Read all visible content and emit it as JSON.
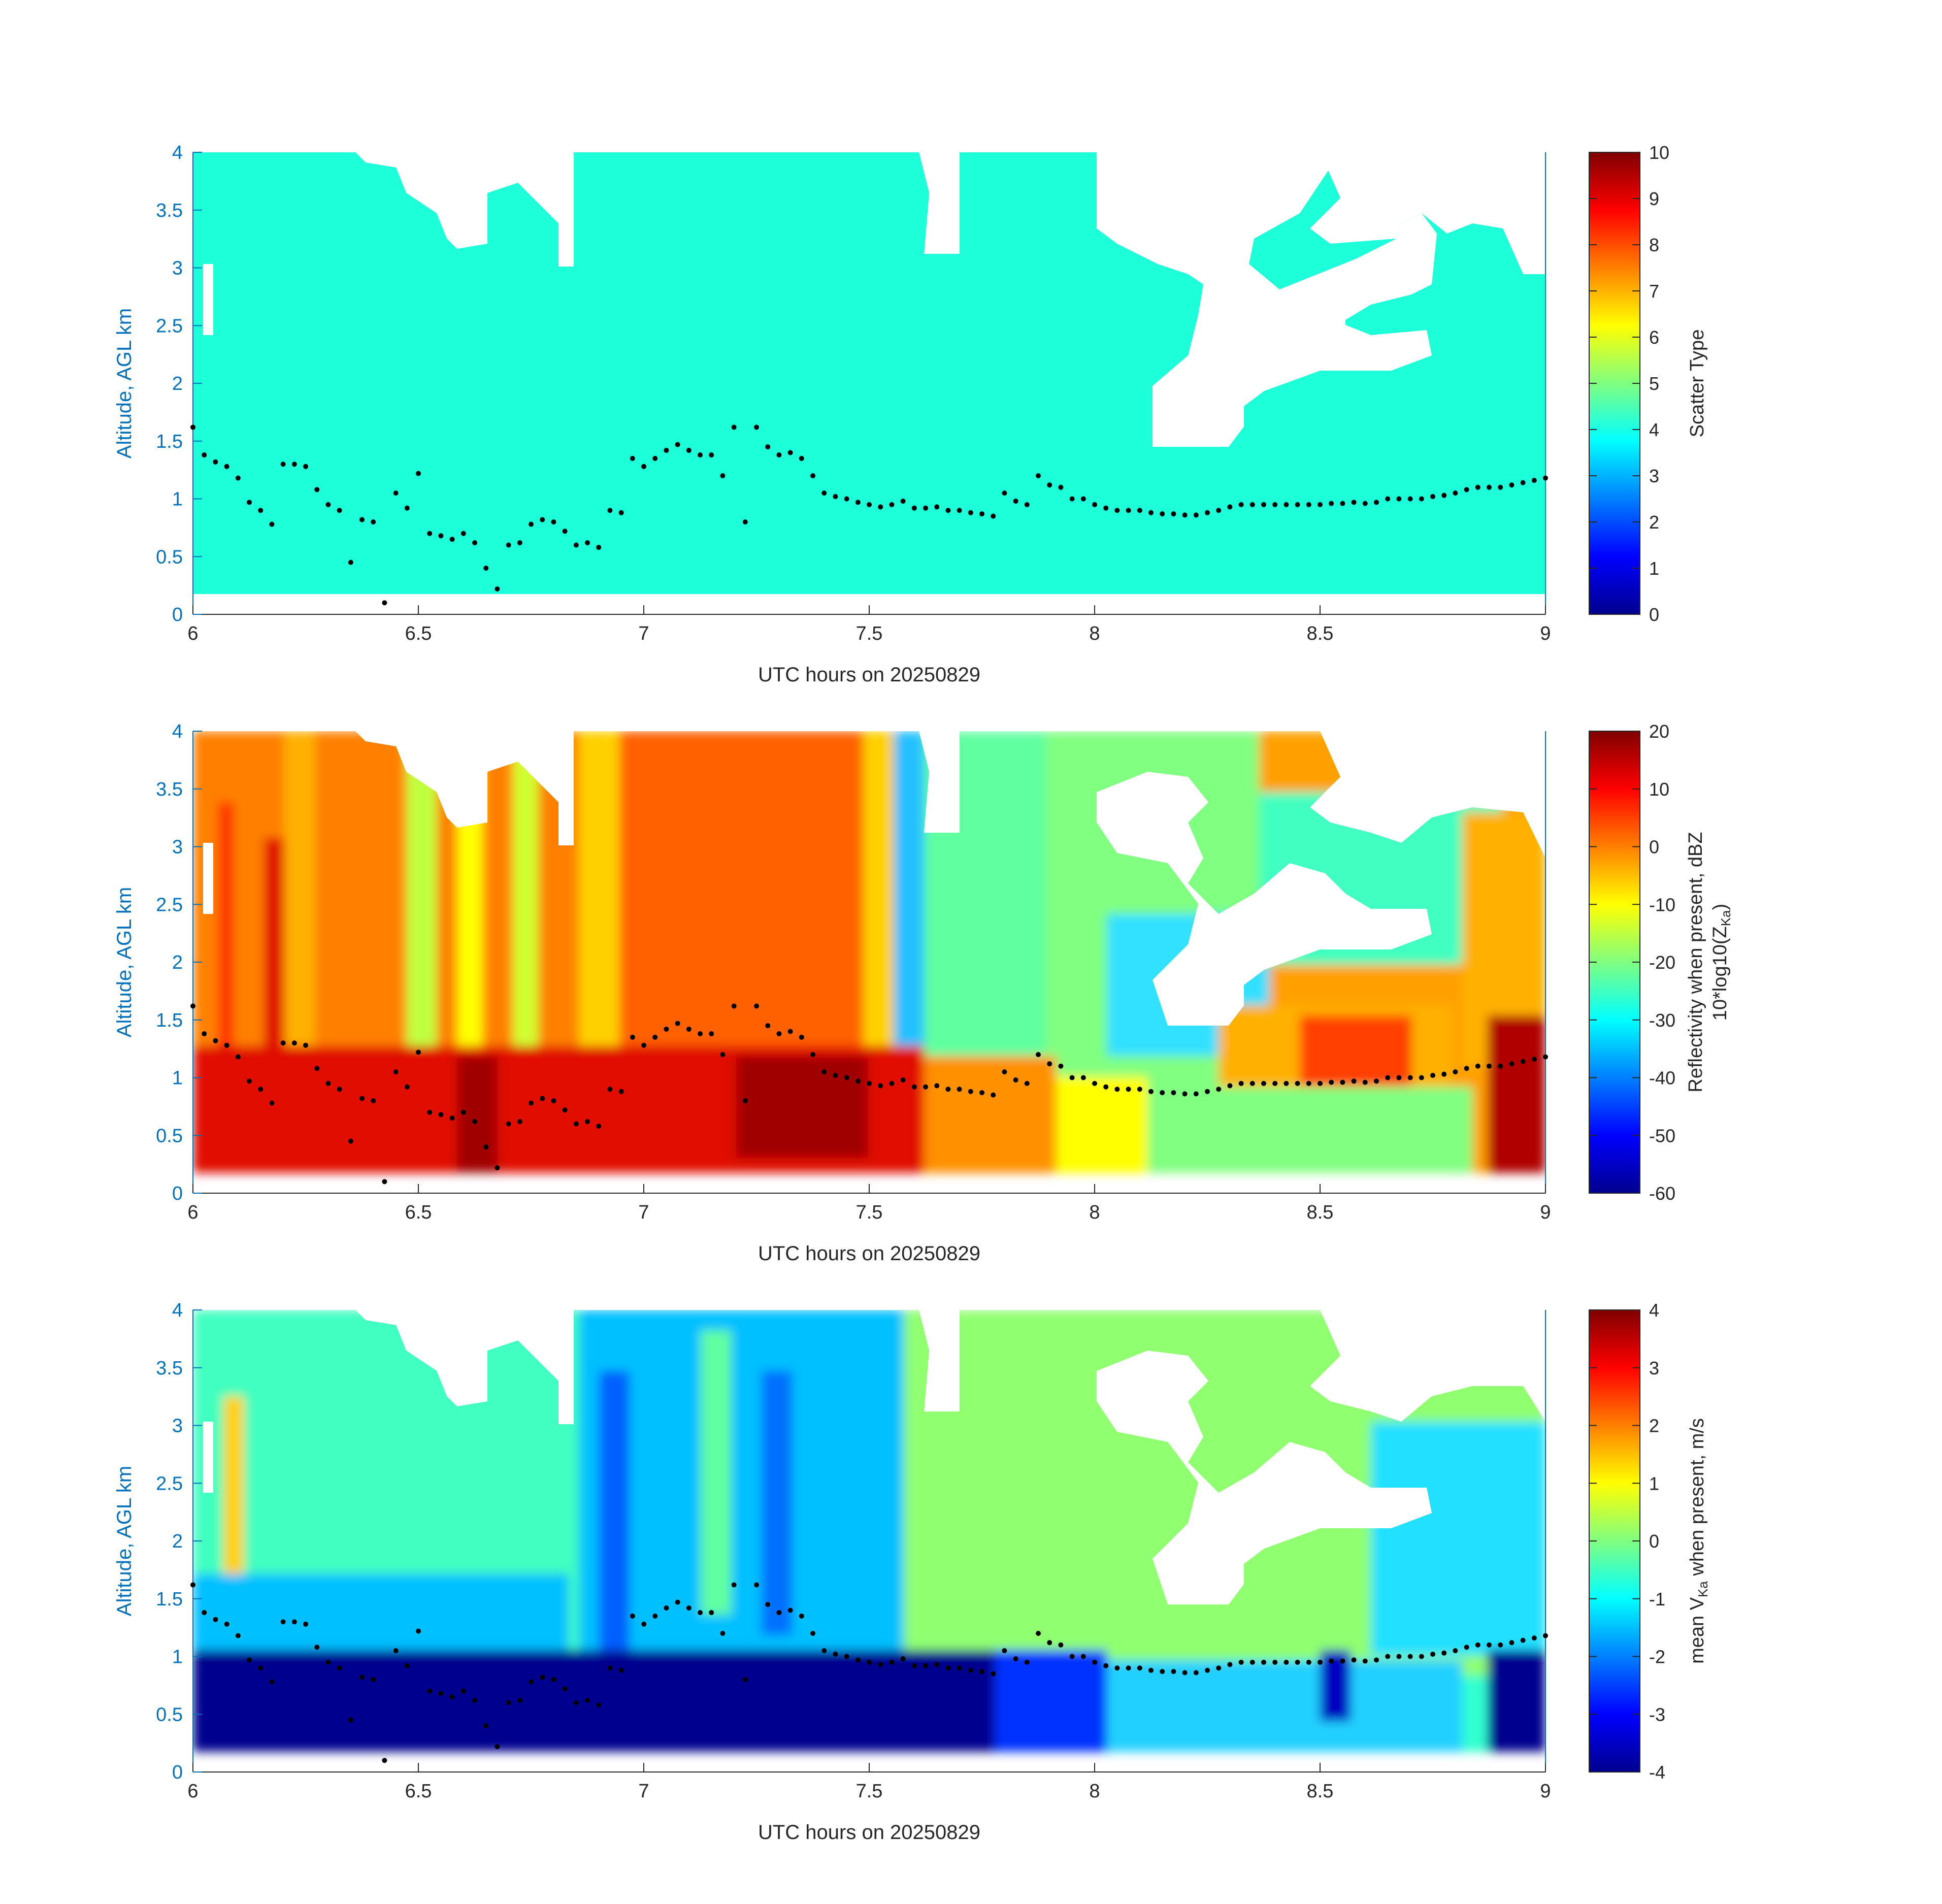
{
  "figure": {
    "xlabel": "UTC hours on 20250829",
    "ylabel": "Altitude, AGL km",
    "xlim": [
      6,
      9
    ],
    "ylim": [
      0,
      4
    ],
    "xticks": [
      6,
      6.5,
      7,
      7.5,
      8,
      8.5,
      9
    ],
    "xtick_labels": [
      "6",
      "6.5",
      "7",
      "7.5",
      "8",
      "8.5",
      "9"
    ],
    "yticks": [
      0,
      0.5,
      1,
      1.5,
      2,
      2.5,
      3,
      3.5,
      4
    ],
    "ytick_labels": [
      "0",
      "0.5",
      "1",
      "1.5",
      "2",
      "2.5",
      "3",
      "3.5",
      "4"
    ],
    "colors": {
      "axis_blue": "#0072bd",
      "text": "#262626",
      "cloud_base_dots": "#000000"
    }
  },
  "chart_data": [
    {
      "type": "heatmap",
      "panel": "top",
      "xlabel": "UTC hours on 20250829",
      "ylabel": "Altitude, AGL km",
      "colorbar": {
        "title": "Scatter Type",
        "range": [
          0,
          10
        ],
        "ticks": [
          "0",
          "1",
          "2",
          "3",
          "4",
          "5",
          "6",
          "7",
          "8",
          "9",
          "10"
        ],
        "colormap": "jet"
      },
      "dominant_value": 3.9,
      "field_altitude_range_km": [
        0.18,
        4.0
      ],
      "clear_air_regions": [
        {
          "x": [
            6.35,
            6.7
          ],
          "y_from_top_km": [
            3.6,
            4.0
          ]
        },
        {
          "x": [
            6.75,
            6.85
          ],
          "y_from_top_km": [
            3.3,
            4.0
          ]
        },
        {
          "x": [
            7.62,
            7.68
          ],
          "y_from_top_km": [
            3.2,
            3.8
          ]
        },
        {
          "x": [
            8.0,
            8.35
          ],
          "y_from_top_km": [
            1.5,
            3.4
          ]
        },
        {
          "x": [
            8.35,
            8.8
          ],
          "y_from_top_km": [
            2.2,
            3.4
          ]
        },
        {
          "x": [
            8.5,
            9.0
          ],
          "y_from_top_km": [
            3.0,
            4.0
          ]
        }
      ]
    },
    {
      "type": "heatmap",
      "panel": "middle",
      "xlabel": "UTC hours on 20250829",
      "ylabel": "Altitude, AGL km",
      "colorbar": {
        "title_line1": "Reflectivity when present, dBZ",
        "title_line2_prefix": "10*log10(Z",
        "title_line2_subscript": "Ka",
        "title_line2_suffix": ")",
        "range": [
          -60,
          20
        ],
        "ticks": [
          "-60",
          "-50",
          "-40",
          "-30",
          "-20",
          "-10",
          "0",
          "10",
          "20"
        ],
        "colormap": "jet"
      },
      "field_altitude_range_km": [
        0.18,
        4.0
      ],
      "description_bands": [
        {
          "x": [
            6.0,
            7.45
          ],
          "y": [
            0.18,
            1.25
          ],
          "value_dbz": 12
        },
        {
          "x": [
            6.0,
            7.45
          ],
          "y": [
            1.25,
            4.0
          ],
          "value_dbz": 2
        },
        {
          "x": [
            7.45,
            7.9
          ],
          "y": [
            0.18,
            1.2
          ],
          "value_dbz": 5
        },
        {
          "x": [
            7.6,
            8.0
          ],
          "y": [
            1.2,
            4.0
          ],
          "value_dbz": -22
        },
        {
          "x": [
            8.0,
            8.9
          ],
          "y": [
            0.18,
            1.0
          ],
          "value_dbz": -18
        },
        {
          "x": [
            8.2,
            8.75
          ],
          "y": [
            0.7,
            1.5
          ],
          "value_dbz": 0
        },
        {
          "x": [
            8.88,
            9.0
          ],
          "y": [
            0.18,
            1.6
          ],
          "value_dbz": 12
        }
      ]
    },
    {
      "type": "heatmap",
      "panel": "bottom",
      "xlabel": "UTC hours on 20250829",
      "ylabel": "Altitude, AGL km",
      "colorbar": {
        "title_prefix": "mean V",
        "title_subscript": "Ka",
        "title_suffix": " when present, m/s",
        "range": [
          -4,
          4
        ],
        "ticks": [
          "-4",
          "-3",
          "-2",
          "-1",
          "0",
          "1",
          "2",
          "3",
          "4"
        ],
        "colormap": "jet"
      },
      "field_altitude_range_km": [
        0.18,
        4.0
      ],
      "description_bands": [
        {
          "x": [
            6.0,
            7.9
          ],
          "y": [
            0.18,
            1.1
          ],
          "value_ms": -4
        },
        {
          "x": [
            6.0,
            7.5
          ],
          "y": [
            1.1,
            4.0
          ],
          "value_ms": -1.5
        },
        {
          "x": [
            7.5,
            9.0
          ],
          "y": [
            1.2,
            4.0
          ],
          "value_ms": -0.3
        },
        {
          "x": [
            8.0,
            8.9
          ],
          "y": [
            0.18,
            1.2
          ],
          "value_ms": -2.2
        },
        {
          "x": [
            8.88,
            9.0
          ],
          "y": [
            0.18,
            1.0
          ],
          "value_ms": -4
        }
      ]
    }
  ],
  "cloud_base_km": {
    "x": [
      6.0,
      6.025,
      6.05,
      6.075,
      6.1,
      6.125,
      6.15,
      6.175,
      6.2,
      6.225,
      6.25,
      6.275,
      6.3,
      6.325,
      6.35,
      6.375,
      6.4,
      6.425,
      6.45,
      6.475,
      6.5,
      6.525,
      6.55,
      6.575,
      6.6,
      6.625,
      6.65,
      6.675,
      6.7,
      6.725,
      6.75,
      6.775,
      6.8,
      6.825,
      6.85,
      6.875,
      6.9,
      6.925,
      6.95,
      6.975,
      7.0,
      7.025,
      7.05,
      7.075,
      7.1,
      7.125,
      7.15,
      7.175,
      7.2,
      7.225,
      7.25,
      7.275,
      7.3,
      7.325,
      7.35,
      7.375,
      7.4,
      7.425,
      7.45,
      7.475,
      7.5,
      7.525,
      7.55,
      7.575,
      7.6,
      7.625,
      7.65,
      7.675,
      7.7,
      7.725,
      7.75,
      7.775,
      7.8,
      7.825,
      7.85,
      7.875,
      7.9,
      7.925,
      7.95,
      7.975,
      8.0,
      8.025,
      8.05,
      8.075,
      8.1,
      8.125,
      8.15,
      8.175,
      8.2,
      8.225,
      8.25,
      8.275,
      8.3,
      8.325,
      8.35,
      8.375,
      8.4,
      8.425,
      8.45,
      8.475,
      8.5,
      8.525,
      8.55,
      8.575,
      8.6,
      8.625,
      8.65,
      8.675,
      8.7,
      8.725,
      8.75,
      8.775,
      8.8,
      8.825,
      8.85,
      8.875,
      8.9,
      8.925,
      8.95,
      8.975,
      9.0
    ],
    "y": [
      1.62,
      1.38,
      1.32,
      1.28,
      1.18,
      0.97,
      0.9,
      0.78,
      1.3,
      1.3,
      1.28,
      1.08,
      0.95,
      0.9,
      0.45,
      0.82,
      0.8,
      0.1,
      1.05,
      0.92,
      1.22,
      0.7,
      0.68,
      0.65,
      0.7,
      0.62,
      0.4,
      0.22,
      0.6,
      0.62,
      0.78,
      0.82,
      0.8,
      0.72,
      0.6,
      0.62,
      0.58,
      0.9,
      0.88,
      1.35,
      1.28,
      1.35,
      1.42,
      1.47,
      1.42,
      1.38,
      1.38,
      1.2,
      1.62,
      0.8,
      1.62,
      1.45,
      1.38,
      1.4,
      1.35,
      1.2,
      1.05,
      1.02,
      1.0,
      0.97,
      0.95,
      0.93,
      0.95,
      0.98,
      0.92,
      0.92,
      0.93,
      0.9,
      0.9,
      0.88,
      0.87,
      0.85,
      1.05,
      0.98,
      0.95,
      1.2,
      1.12,
      1.1,
      1.0,
      1.0,
      0.95,
      0.92,
      0.9,
      0.9,
      0.9,
      0.88,
      0.87,
      0.87,
      0.86,
      0.86,
      0.88,
      0.9,
      0.93,
      0.95,
      0.95,
      0.95,
      0.95,
      0.95,
      0.95,
      0.95,
      0.95,
      0.96,
      0.96,
      0.97,
      0.96,
      0.97,
      1.0,
      1.0,
      1.0,
      1.0,
      1.02,
      1.03,
      1.05,
      1.08,
      1.1,
      1.1,
      1.1,
      1.12,
      1.14,
      1.16,
      1.18
    ]
  }
}
